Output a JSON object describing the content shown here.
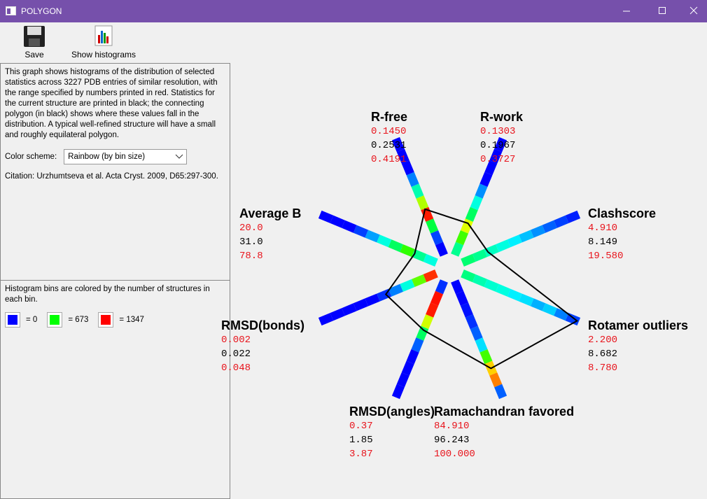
{
  "window": {
    "title": "POLYGON"
  },
  "toolbar": {
    "save": "Save",
    "show_histograms": "Show histograms"
  },
  "panel": {
    "description": "This graph shows histograms of the distribution of selected statistics across 3227 PDB entries of similar resolution, with the range specified by numbers printed in red.  Statistics for the current structure are printed in black; the connecting polygon (in black) shows where these values fall in the distribution. A typical well-refined structure will have a small and roughly equilateral polygon.",
    "color_scheme_label": "Color scheme:",
    "color_scheme_value": "Rainbow (by bin size)",
    "citation": "Citation: Urzhumtseva et al. Acta Cryst. 2009, D65:297-300.",
    "legend_text": "Histogram bins are colored by the number of structures in each bin.",
    "legend": [
      {
        "color": "#0000ff",
        "label": "= 0"
      },
      {
        "color": "#00ff00",
        "label": "= 673"
      },
      {
        "color": "#ff0000",
        "label": "= 1347"
      }
    ]
  },
  "chart_data": {
    "type": "polygon",
    "range_color": "#e8141c",
    "value_color": "#000000",
    "axes": [
      {
        "name": "R-free",
        "values": [
          0.145,
          0.2531,
          0.4191
        ],
        "value_labels": [
          "0.1450",
          "0.2531",
          "0.4191"
        ],
        "bins": [
          "#0000ff",
          "#0044ff",
          "#00ff40",
          "#ff1a00",
          "#b0ff00",
          "#00ffb0",
          "#0080ff",
          "#0000ff",
          "#0000ff",
          "#0000ff"
        ]
      },
      {
        "name": "R-work",
        "values": [
          0.1303,
          0.1967,
          0.3727
        ],
        "value_labels": [
          "0.1303",
          "0.1967",
          "0.3727"
        ],
        "bins": [
          "#00ff90",
          "#40ff00",
          "#e0ff00",
          "#00ff60",
          "#00ffe0",
          "#0090ff",
          "#0000ff",
          "#0000ff",
          "#0000ff",
          "#0000ff"
        ]
      },
      {
        "name": "Clashscore",
        "values": [
          4.91,
          8.149,
          19.58
        ],
        "value_labels": [
          "4.910",
          "8.149",
          "19.580"
        ],
        "bins": [
          "#00ff70",
          "#00ff90",
          "#00ffc0",
          "#00ffe0",
          "#00f0ff",
          "#00c0ff",
          "#0090ff",
          "#0060ff",
          "#0040ff",
          "#0020ff"
        ]
      },
      {
        "name": "Rotamer outliers",
        "values": [
          2.2,
          8.682,
          8.78
        ],
        "value_labels": [
          "2.200",
          "8.682",
          "8.780"
        ],
        "bins": [
          "#00ff80",
          "#00ffb0",
          "#00ffd0",
          "#00ffe0",
          "#00f0ff",
          "#00e0ff",
          "#00b0ff",
          "#00d0ff",
          "#0080ff",
          "#0040ff"
        ]
      },
      {
        "name": "Ramachandran favored",
        "values": [
          84.91,
          96.243,
          100
        ],
        "value_labels": [
          "84.910",
          "96.243",
          "100.000"
        ],
        "bins": [
          "#0000ff",
          "#0000ff",
          "#0010ff",
          "#0030ff",
          "#0060ff",
          "#00e0ff",
          "#40ff00",
          "#ffd000",
          "#ff8000",
          "#0060ff"
        ]
      },
      {
        "name": "RMSD(angles)",
        "values": [
          0.37,
          1.85,
          3.87
        ],
        "value_labels": [
          "0.37",
          "1.85",
          "3.87"
        ],
        "bins": [
          "#0030ff",
          "#ff1000",
          "#ff1a00",
          "#d0ff00",
          "#00ff60",
          "#0060ff",
          "#0000ff",
          "#0000ff",
          "#0000ff",
          "#0000ff"
        ]
      },
      {
        "name": "RMSD(bonds)",
        "values": [
          0.002,
          0.022,
          0.048
        ],
        "value_labels": [
          "0.002",
          "0.022",
          "0.048"
        ],
        "bins": [
          "#ff3000",
          "#60ff00",
          "#00ffe0",
          "#0080ff",
          "#0030ff",
          "#0000ff",
          "#0000ff",
          "#0000ff",
          "#0000ff",
          "#0000ff"
        ]
      },
      {
        "name": "Average B",
        "values": [
          20,
          31,
          78.8
        ],
        "value_labels": [
          "20.0",
          "31.0",
          "78.8"
        ],
        "bins": [
          "#00ffe0",
          "#00ff90",
          "#30ff00",
          "#00ff60",
          "#00ffe0",
          "#00a0ff",
          "#0040ff",
          "#0000ff",
          "#0000ff",
          "#0000ff"
        ]
      }
    ]
  }
}
